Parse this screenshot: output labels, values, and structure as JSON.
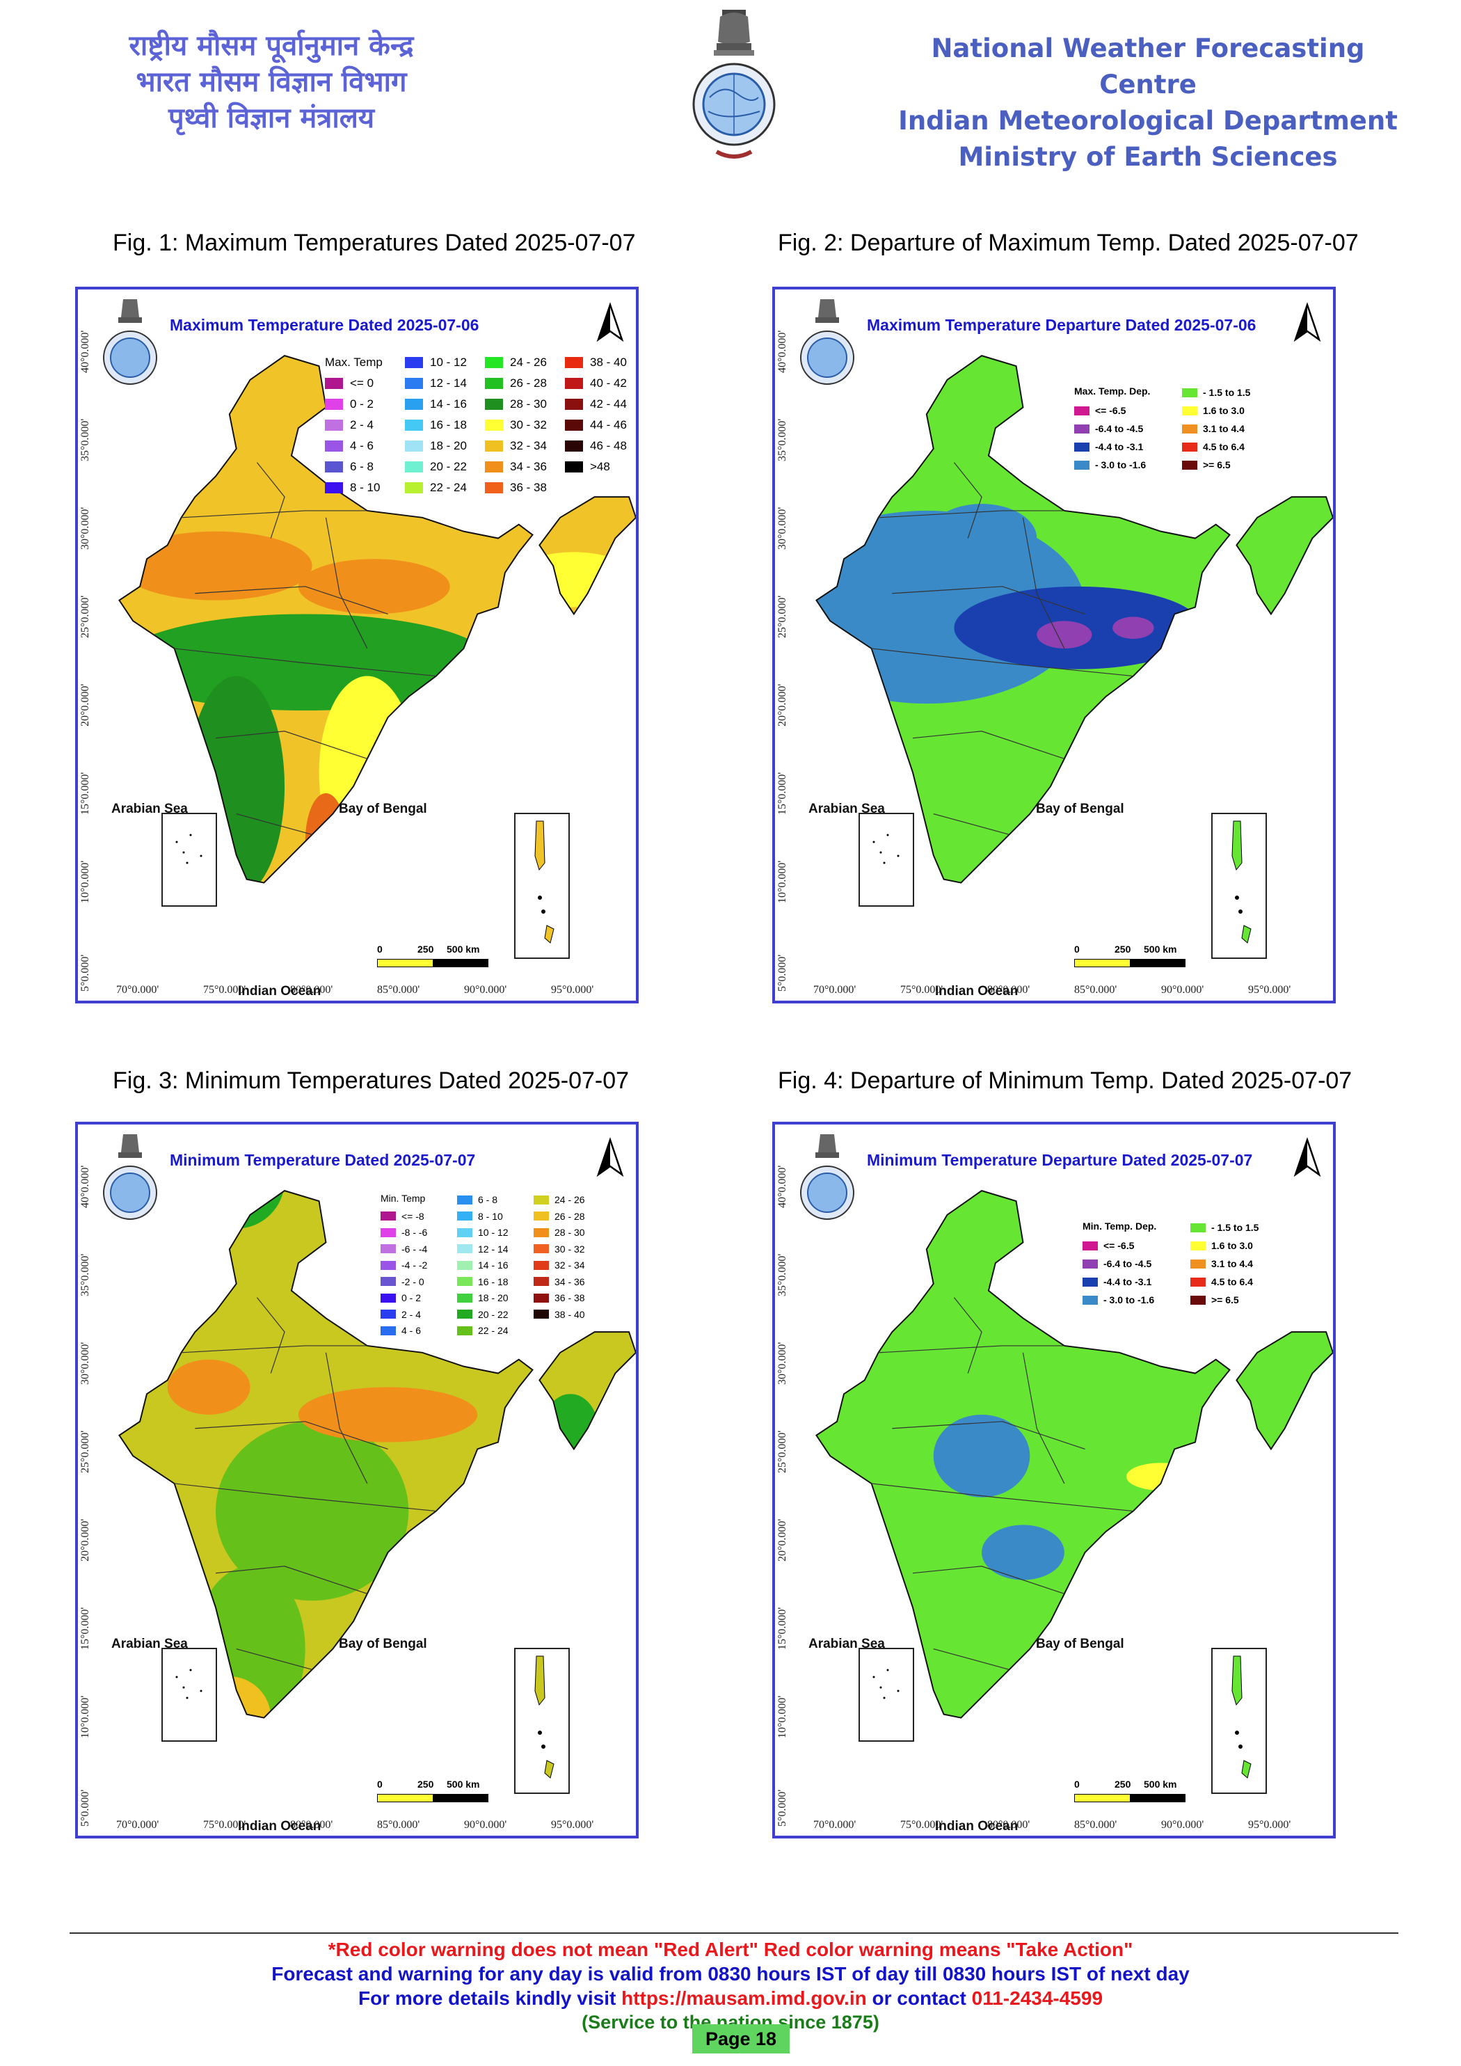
{
  "header": {
    "hindi": [
      "राष्ट्रीय मौसम पूर्वानुमान केन्द्र",
      "भारत मौसम विज्ञान विभाग",
      "पृथ्वी विज्ञान मंत्रालय"
    ],
    "english": [
      "National Weather Forecasting Centre",
      "Indian Meteorological Department",
      "Ministry of Earth Sciences"
    ],
    "logo_icon": "imd-emblem-icon"
  },
  "figures": [
    {
      "caption": "Fig. 1: Maximum Temperatures Dated 2025-07-07",
      "map_title": "Maximum Temperature Dated 2025-07-06",
      "legend_title": "Max. Temp",
      "legend": [
        {
          "label": "<= 0",
          "color": "#b0168e"
        },
        {
          "label": "0 - 2",
          "color": "#e040e8"
        },
        {
          "label": "2 - 4",
          "color": "#c070e0"
        },
        {
          "label": "4 - 6",
          "color": "#9a55e6"
        },
        {
          "label": "6 - 8",
          "color": "#5a55d0"
        },
        {
          "label": "8 - 10",
          "color": "#3b10f0"
        },
        {
          "label": "10 - 12",
          "color": "#2a3cf0"
        },
        {
          "label": "12 - 14",
          "color": "#2a7cf0"
        },
        {
          "label": "14 - 16",
          "color": "#2aa0f0"
        },
        {
          "label": "16 - 18",
          "color": "#44c8f4"
        },
        {
          "label": "18 - 20",
          "color": "#a0e2f6"
        },
        {
          "label": "20 - 22",
          "color": "#6ff0d0"
        },
        {
          "label": "22 - 24",
          "color": "#b8f030"
        },
        {
          "label": "24 - 26",
          "color": "#24e624"
        },
        {
          "label": "26 - 28",
          "color": "#22c020"
        },
        {
          "label": "28 - 30",
          "color": "#1f8f1f"
        },
        {
          "label": "30 - 32",
          "color": "#ffff33"
        },
        {
          "label": "32 - 34",
          "color": "#f0c020"
        },
        {
          "label": "34 - 36",
          "color": "#f0901a"
        },
        {
          "label": "36 - 38",
          "color": "#f0601a"
        },
        {
          "label": "38 - 40",
          "color": "#e82a10"
        },
        {
          "label": "40 - 42",
          "color": "#c01818"
        },
        {
          "label": "42 - 44",
          "color": "#8a1010"
        },
        {
          "label": "44 - 46",
          "color": "#5a0808"
        },
        {
          "label": "46 - 48",
          "color": "#2a0505"
        },
        {
          "label": ">48",
          "color": "#000000"
        }
      ]
    },
    {
      "caption": "Fig. 2: Departure of Maximum Temp. Dated 2025-07-07",
      "map_title": "Maximum Temperature Departure Dated 2025-07-06",
      "legend_title": "Max. Temp. Dep.",
      "legend": [
        {
          "label": "<= -6.5",
          "color": "#d01890"
        },
        {
          "label": "-6.4 to -4.5",
          "color": "#9040b0"
        },
        {
          "label": "-4.4 to -3.1",
          "color": "#1a40b0"
        },
        {
          "label": "- 3.0 to -1.6",
          "color": "#3a8ac8"
        },
        {
          "label": "- 1.5 to 1.5",
          "color": "#66e633"
        },
        {
          "label": "1.6 to  3.0",
          "color": "#ffff33"
        },
        {
          "label": "3.1 to 4.4",
          "color": "#f09020"
        },
        {
          "label": "4.5 to 6.4",
          "color": "#e82a18"
        },
        {
          "label": ">= 6.5",
          "color": "#6a0a0a"
        }
      ]
    },
    {
      "caption": "Fig. 3: Minimum Temperatures Dated 2025-07-07",
      "map_title": "Minimum Temperature Dated 2025-07-07",
      "legend_title": "Min. Temp",
      "legend": [
        {
          "label": "<= -8",
          "color": "#b0168e"
        },
        {
          "label": "-8 - -6",
          "color": "#e040e8"
        },
        {
          "label": "-6 - -4",
          "color": "#c070e0"
        },
        {
          "label": "-4 - -2",
          "color": "#9a55e6"
        },
        {
          "label": "-2 - 0",
          "color": "#6a55d0"
        },
        {
          "label": "0 - 2",
          "color": "#3b10f0"
        },
        {
          "label": "2 - 4",
          "color": "#2a3cf0"
        },
        {
          "label": "4 - 6",
          "color": "#2a6cf0"
        },
        {
          "label": "6 - 8",
          "color": "#2a90f0"
        },
        {
          "label": "8 - 10",
          "color": "#34b0f4"
        },
        {
          "label": "10 - 12",
          "color": "#60d0f4"
        },
        {
          "label": "12 - 14",
          "color": "#a0e8f0"
        },
        {
          "label": "14 - 16",
          "color": "#a0f0b0"
        },
        {
          "label": "16 - 18",
          "color": "#7ae65a"
        },
        {
          "label": "18 - 20",
          "color": "#40d040"
        },
        {
          "label": "20 - 22",
          "color": "#22aa22"
        },
        {
          "label": "22 - 24",
          "color": "#66c01a"
        },
        {
          "label": "24 - 26",
          "color": "#d0d020"
        },
        {
          "label": "26 - 28",
          "color": "#f0c020"
        },
        {
          "label": "28 - 30",
          "color": "#f0901a"
        },
        {
          "label": "30 - 32",
          "color": "#f06020"
        },
        {
          "label": "32 - 34",
          "color": "#e03a18"
        },
        {
          "label": "34 - 36",
          "color": "#c02818"
        },
        {
          "label": "36 - 38",
          "color": "#901010"
        },
        {
          "label": "38 - 40",
          "color": "#200505"
        }
      ]
    },
    {
      "caption": "Fig. 4: Departure of Minimum Temp. Dated 2025-07-07",
      "map_title": "Minimum Temperature Departure Dated 2025-07-07",
      "legend_title": "Min. Temp. Dep.",
      "legend": [
        {
          "label": "<= -6.5",
          "color": "#d01890"
        },
        {
          "label": "-6.4 to -4.5",
          "color": "#9040b0"
        },
        {
          "label": "-4.4 to -3.1",
          "color": "#1a40b0"
        },
        {
          "label": "- 3.0 to -1.6",
          "color": "#3a8ac8"
        },
        {
          "label": "- 1.5 to 1.5",
          "color": "#66e633"
        },
        {
          "label": "1.6 to  3.0",
          "color": "#ffff33"
        },
        {
          "label": "3.1 to 4.4",
          "color": "#f09020"
        },
        {
          "label": "4.5 to 6.4",
          "color": "#e82a18"
        },
        {
          "label": ">= 6.5",
          "color": "#6a0a0a"
        }
      ]
    }
  ],
  "map_labels": {
    "arabian_sea": "Arabian Sea",
    "bay_of_bengal": "Bay of Bengal",
    "indian_ocean": "Indian Ocean",
    "scale": [
      "0",
      "250",
      "500 km"
    ],
    "longitudes": [
      "70°0.000'",
      "75°0.000'",
      "80°0.000'",
      "85°0.000'",
      "90°0.000'",
      "95°0.000'"
    ],
    "latitudes": [
      "40°0.000'",
      "35°0.000'",
      "30°0.000'",
      "25°0.000'",
      "20°0.000'",
      "15°0.000'",
      "10°0.000'",
      "5°0.000'"
    ]
  },
  "footer": {
    "line1": "*Red color warning does not mean \"Red Alert\" Red color warning means \"Take Action\"",
    "line2": "Forecast and warning for any day is valid from 0830 hours IST of day till 0830 hours IST of next day",
    "line3_prefix": "For more details kindly visit ",
    "line3_url": "https://mausam.imd.gov.in",
    "line3_mid": " or contact ",
    "line3_phone": "011-2434-4599",
    "line4": "(Service to the nation since 1875)",
    "page": "Page 18"
  },
  "colors": {
    "panel_border": "#3f3fcf",
    "title_blue": "#1a1acc",
    "header_blue": "#4a5fc0",
    "footer_red": "#e8181c",
    "footer_blue": "#1313c8",
    "footer_green": "#1b7d19",
    "page_badge": "#5fd45f"
  }
}
